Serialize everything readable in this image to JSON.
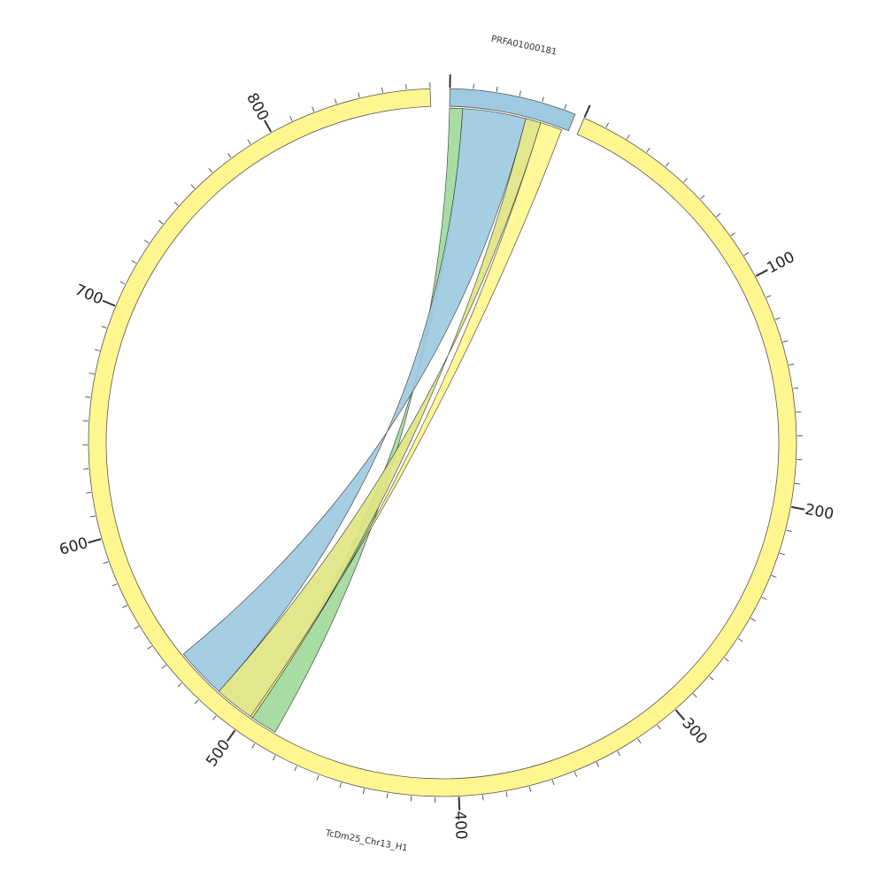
{
  "chart_data": {
    "type": "circos",
    "chromosomes": [
      {
        "name": "TcDm25_Chr13_H1",
        "length": 870,
        "color": "#fff68f",
        "tick_labels": [
          "100",
          "200",
          "300",
          "400",
          "500",
          "600",
          "700",
          "800"
        ]
      },
      {
        "name": "PRFA01000181",
        "length": 55,
        "color": "#9ecae1"
      }
    ],
    "ribbons": [
      {
        "from_chr": "PRFA01000181",
        "from": [
          0,
          6
        ],
        "to_chr": "TcDm25_Chr13_H1",
        "to": [
          485,
          497
        ],
        "color": "#a1d99b"
      },
      {
        "from_chr": "PRFA01000181",
        "from": [
          6,
          35
        ],
        "to_chr": "TcDm25_Chr13_H1",
        "to": [
          516,
          539
        ],
        "color": "#9ecae1"
      },
      {
        "from_chr": "PRFA01000181",
        "from": [
          35,
          42
        ],
        "to_chr": "TcDm25_Chr13_H1",
        "to": [
          497,
          516
        ],
        "color": "#dfe584"
      },
      {
        "from_chr": "PRFA01000181",
        "from": [
          42,
          52
        ],
        "to_chr": "TcDm25_Chr13_H1",
        "to": [
          497,
          498
        ],
        "color": "#fff68f"
      }
    ]
  }
}
